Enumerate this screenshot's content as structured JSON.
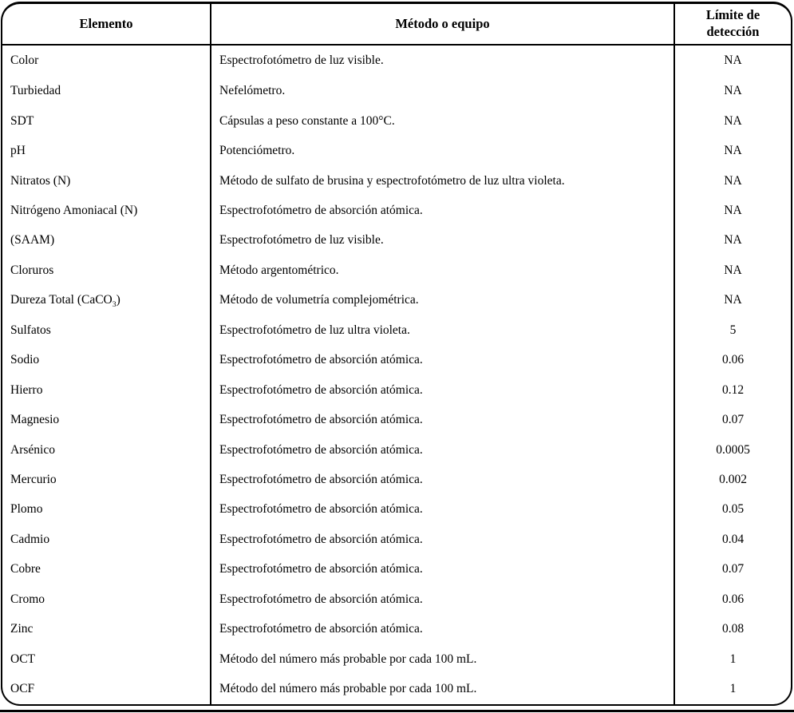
{
  "colors": {
    "border": "#000000",
    "background": "#ffffff",
    "text": "#000000"
  },
  "table": {
    "columns": [
      {
        "label": "Elemento"
      },
      {
        "label": "Método o equipo"
      },
      {
        "label": "Límite de detección"
      }
    ],
    "rows": [
      {
        "element": "Color",
        "method": "Espectrofotómetro de luz visible.",
        "limit": "NA"
      },
      {
        "element": "Turbiedad",
        "method": "Nefelómetro.",
        "limit": "NA"
      },
      {
        "element": "SDT",
        "method": "Cápsulas a peso constante a 100°C.",
        "limit": "NA"
      },
      {
        "element": "pH",
        "method": "Potenciómetro.",
        "limit": "NA"
      },
      {
        "element": "Nitratos (N)",
        "method": "Método de sulfato de brusina y espectrofotómetro de luz ultra violeta.",
        "limit": "NA"
      },
      {
        "element": "Nitrógeno Amoniacal (N)",
        "method": "Espectrofotómetro de absorción atómica.",
        "limit": "NA"
      },
      {
        "element": "(SAAM)",
        "method": "Espectrofotómetro de luz visible.",
        "limit": "NA"
      },
      {
        "element": "Cloruros",
        "method": "Método argentométrico.",
        "limit": "NA"
      },
      {
        "element": "Dureza Total (CaCO_{3})",
        "method": "Método de volumetría complejométrica.",
        "limit": "NA"
      },
      {
        "element": "Sulfatos",
        "method": "Espectrofotómetro de luz ultra violeta.",
        "limit": "5"
      },
      {
        "element": "Sodio",
        "method": "Espectrofotómetro de absorción atómica.",
        "limit": "0.06"
      },
      {
        "element": "Hierro",
        "method": "Espectrofotómetro de absorción atómica.",
        "limit": "0.12"
      },
      {
        "element": "Magnesio",
        "method": "Espectrofotómetro de absorción atómica.",
        "limit": "0.07"
      },
      {
        "element": "Arsénico",
        "method": "Espectrofotómetro de absorción atómica.",
        "limit": "0.0005"
      },
      {
        "element": "Mercurio",
        "method": "Espectrofotómetro de absorción atómica.",
        "limit": "0.002"
      },
      {
        "element": "Plomo",
        "method": "Espectrofotómetro de absorción atómica.",
        "limit": "0.05"
      },
      {
        "element": "Cadmio",
        "method": "Espectrofotómetro de absorción atómica.",
        "limit": "0.04"
      },
      {
        "element": "Cobre",
        "method": "Espectrofotómetro de absorción atómica.",
        "limit": "0.07"
      },
      {
        "element": "Cromo",
        "method": "Espectrofotómetro de absorción atómica.",
        "limit": "0.06"
      },
      {
        "element": "Zinc",
        "method": "Espectrofotómetro de absorción atómica.",
        "limit": "0.08"
      },
      {
        "element": "OCT",
        "method": "Método del número más probable por cada 100 mL.",
        "limit": "1"
      },
      {
        "element": "OCF",
        "method": "Método del número más probable por cada 100 mL.",
        "limit": "1"
      }
    ]
  }
}
